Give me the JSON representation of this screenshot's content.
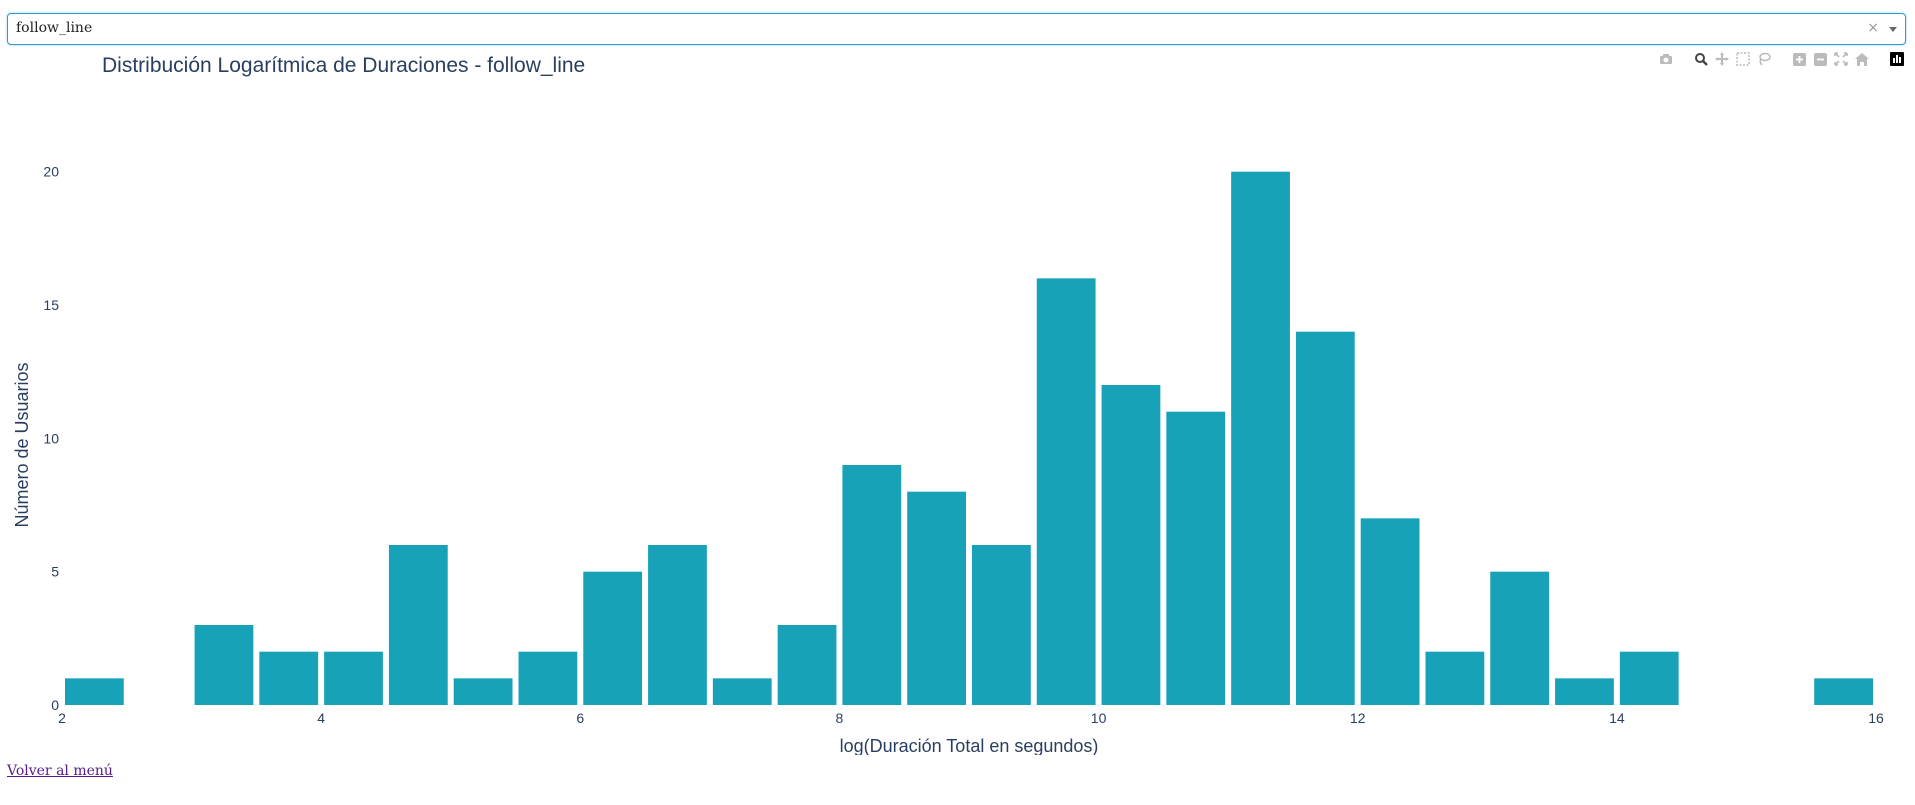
{
  "dropdown": {
    "value": "follow_line",
    "clear_glyph": "×"
  },
  "modebar": {
    "icons": [
      "camera-icon",
      "zoom-icon",
      "pan-icon",
      "box-select-icon",
      "lasso-select-icon",
      "zoom-in-icon",
      "zoom-out-icon",
      "autoscale-icon",
      "reset-axes-icon",
      "plotly-logo-icon"
    ]
  },
  "chart_data": {
    "type": "bar",
    "title": "Distribución Logarítmica de Duraciones - follow_line",
    "xlabel": "log(Duración Total en segundos)",
    "ylabel": "Número de Usuarios",
    "bar_color": "#17a2b8",
    "xlim": [
      2,
      16
    ],
    "ylim": [
      0,
      21
    ],
    "x_ticks": [
      2,
      4,
      6,
      8,
      10,
      12,
      14,
      16
    ],
    "y_ticks": [
      0,
      5,
      10,
      15,
      20
    ],
    "bin_width": 0.5,
    "bin_starts": [
      2,
      2.5,
      3,
      3.5,
      4,
      4.5,
      5,
      5.5,
      6,
      6.5,
      7,
      7.5,
      8,
      8.5,
      9,
      9.5,
      10,
      10.5,
      11,
      11.5,
      12,
      12.5,
      13,
      13.5,
      14,
      14.5,
      15,
      15.5
    ],
    "values": [
      1,
      0,
      3,
      2,
      2,
      6,
      1,
      2,
      5,
      6,
      1,
      3,
      9,
      8,
      6,
      16,
      12,
      11,
      20,
      14,
      7,
      2,
      5,
      1,
      2,
      0,
      0,
      1
    ],
    "grid": false,
    "legend": "none"
  },
  "footer": {
    "back_link": "Volver al menú"
  }
}
